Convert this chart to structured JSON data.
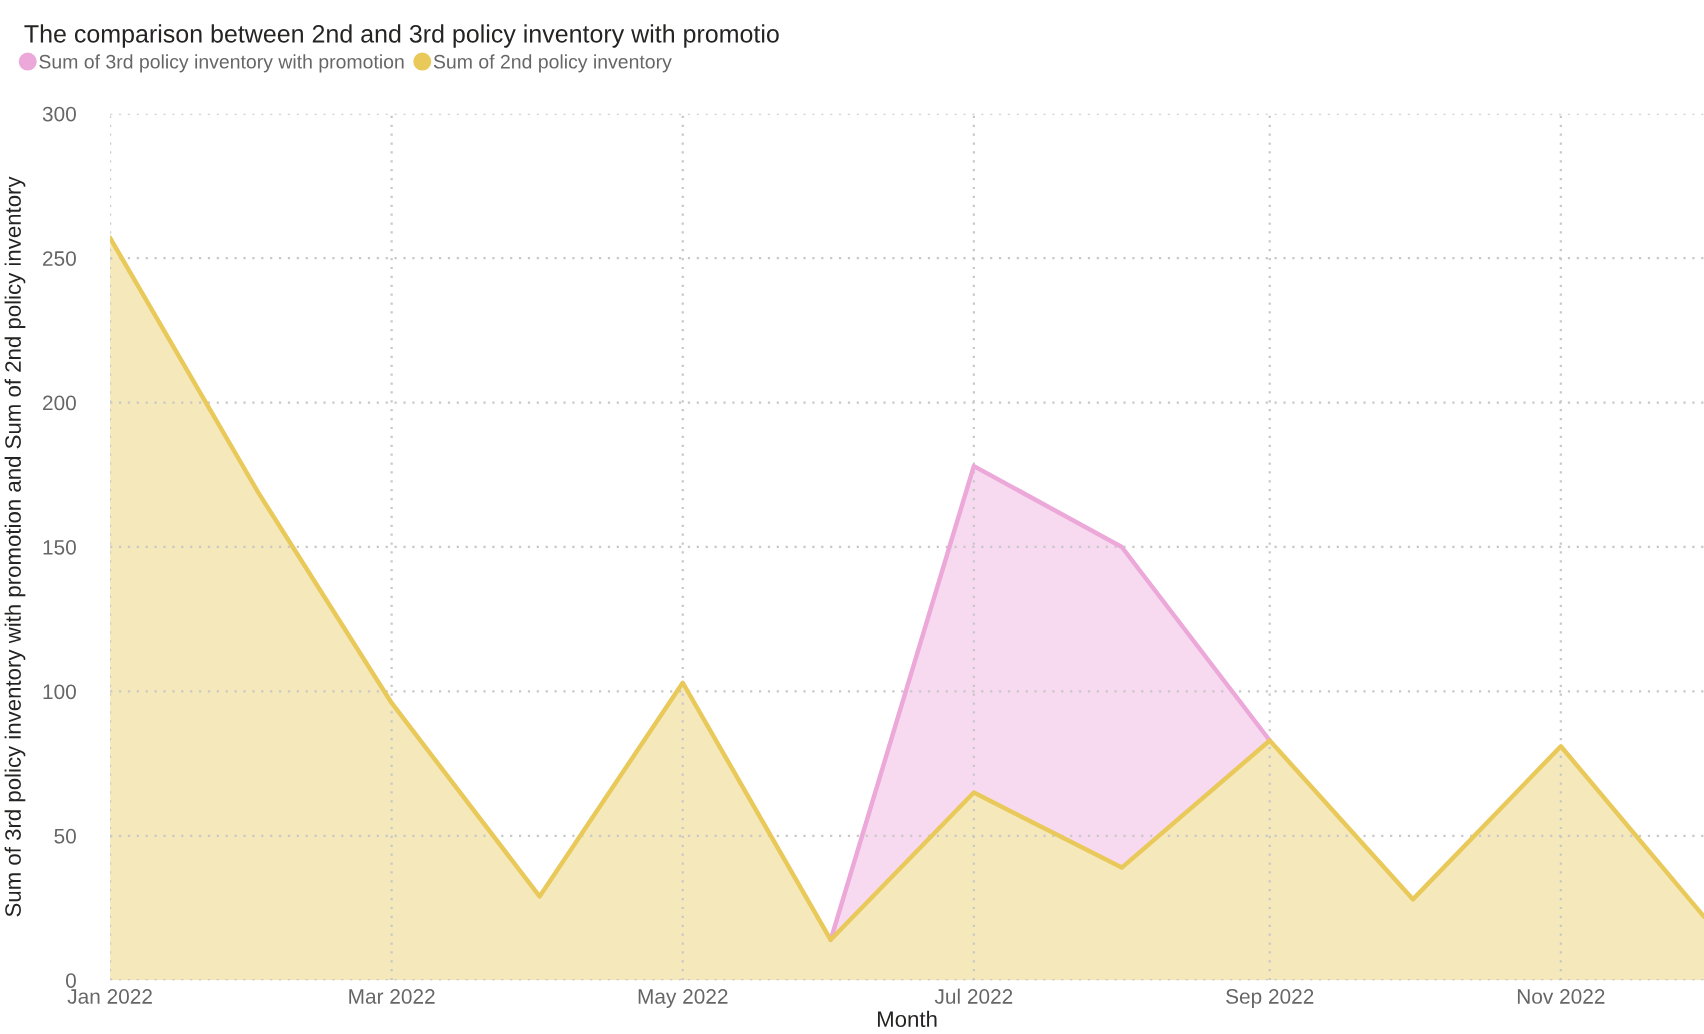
{
  "chart_data": {
    "type": "area",
    "title": "The comparison between 2nd and 3rd policy inventory with promotio",
    "xlabel": "Month",
    "ylabel": "Sum of 3rd policy inventory with promotion and Sum of 2nd policy inventory",
    "x": [
      "2022-01",
      "2022-02",
      "2022-03",
      "2022-04",
      "2022-05",
      "2022-06",
      "2022-07",
      "2022-08",
      "2022-09",
      "2022-10",
      "2022-11",
      "2022-12"
    ],
    "series": [
      {
        "name": "Sum of 3rd policy inventory with promotion",
        "color": "#eba8d8",
        "values": [
          null,
          null,
          null,
          null,
          null,
          14,
          178,
          150,
          83,
          null,
          null,
          null
        ]
      },
      {
        "name": "Sum of 2nd policy inventory",
        "color": "#e8c95a",
        "values": [
          257,
          169,
          96,
          29,
          103,
          14,
          65,
          39,
          83,
          28,
          81,
          22
        ]
      }
    ],
    "xlim": [
      "2022-01",
      "2022-12"
    ],
    "xticks": [
      {
        "value": "2022-01",
        "label": "Jan 2022"
      },
      {
        "value": "2022-03",
        "label": "Mar 2022"
      },
      {
        "value": "2022-05",
        "label": "May 2022"
      },
      {
        "value": "2022-07",
        "label": "Jul 2022"
      },
      {
        "value": "2022-09",
        "label": "Sep 2022"
      },
      {
        "value": "2022-11",
        "label": "Nov 2022"
      }
    ],
    "ylim": [
      0,
      300
    ],
    "yticks": [
      0,
      50,
      100,
      150,
      200,
      250,
      300
    ],
    "grid": true,
    "legend": "top left"
  }
}
